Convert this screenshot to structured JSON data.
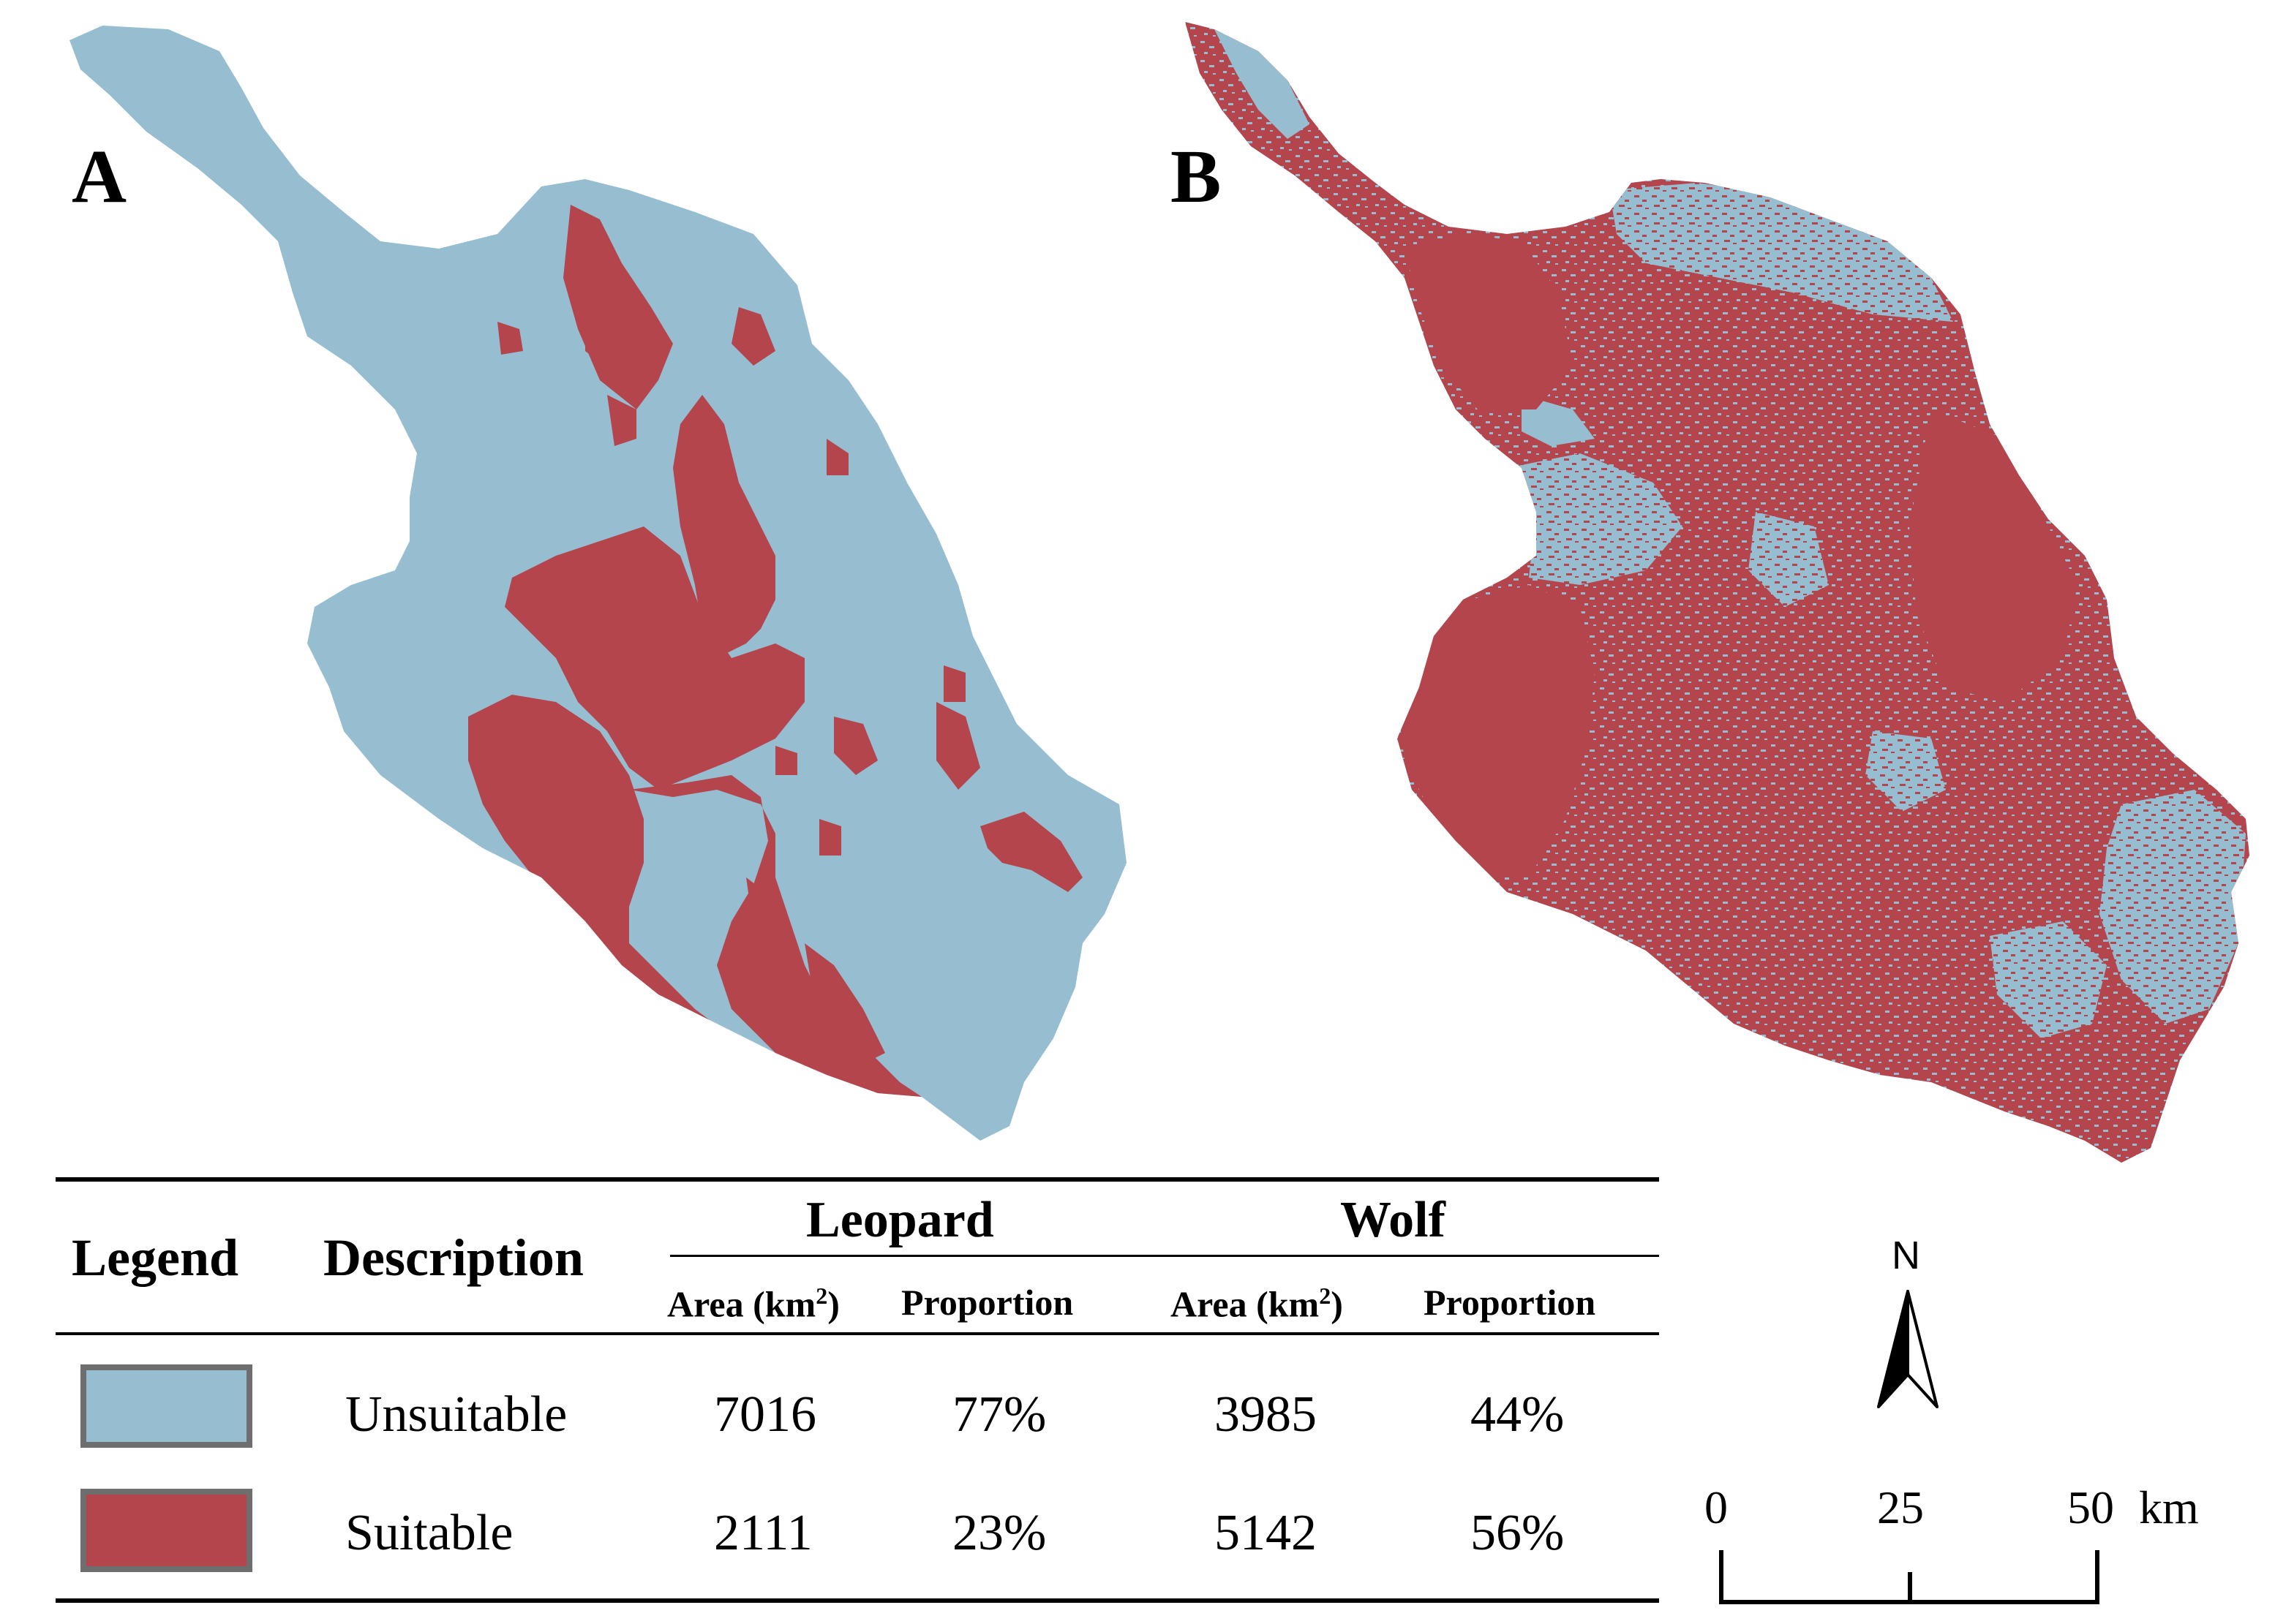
{
  "panels": [
    {
      "letter": "A"
    },
    {
      "letter": "B"
    }
  ],
  "colors": {
    "unsuitable": "#96bdd0",
    "suitable": "#b5454d",
    "swatch_border": "#6e6e6e"
  },
  "legend_table": {
    "legend_header": "Legend",
    "description_header": "Description",
    "species": [
      {
        "name": "Leopard",
        "area_header": "Area (km",
        "area_sup": "2",
        "area_close": ")",
        "proportion_header": "Proportion"
      },
      {
        "name": "Wolf",
        "area_header": "Area (km",
        "area_sup": "2",
        "area_close": ")",
        "proportion_header": "Proportion"
      }
    ],
    "rows": [
      {
        "description": "Unsuitable",
        "leopard_area": "7016",
        "leopard_proportion": "77%",
        "wolf_area": "3985",
        "wolf_proportion": "44%"
      },
      {
        "description": "Suitable",
        "leopard_area": "2111",
        "leopard_proportion": "23%",
        "wolf_area": "5142",
        "wolf_proportion": "56%"
      }
    ]
  },
  "north_arrow": {
    "label": "N"
  },
  "scale_bar": {
    "ticks": [
      "0",
      "25",
      "50"
    ],
    "unit": "km"
  }
}
